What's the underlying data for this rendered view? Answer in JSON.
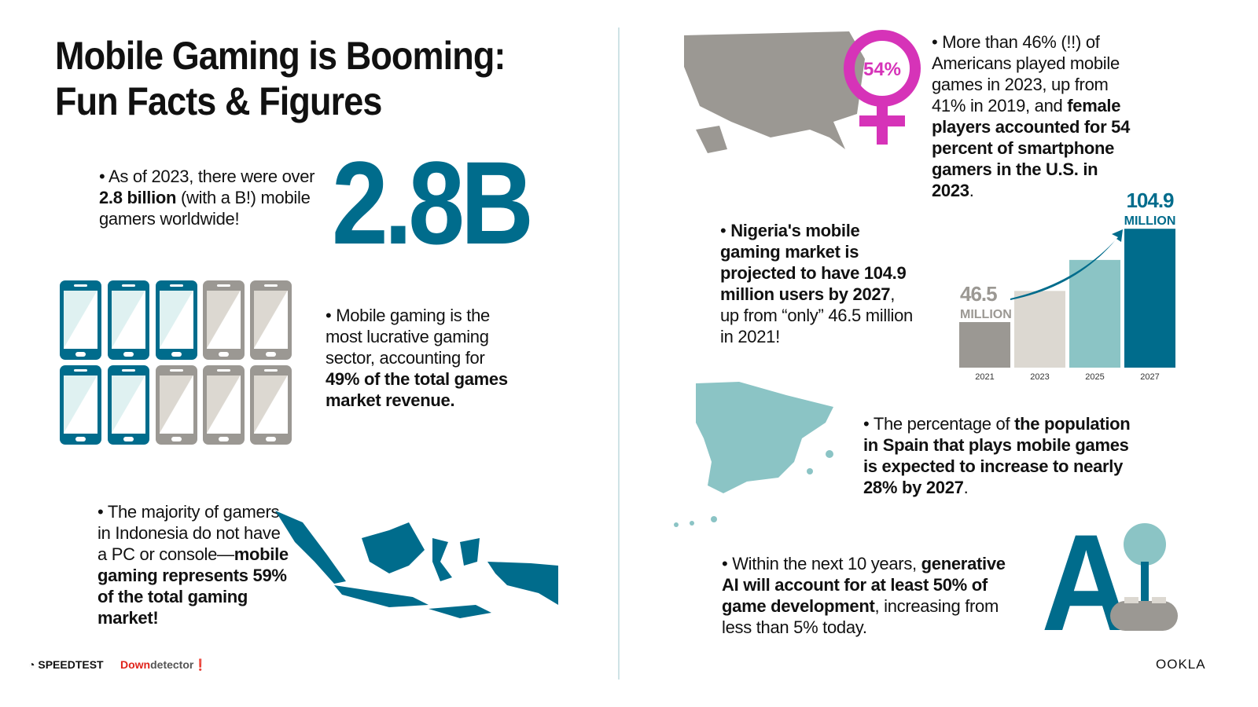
{
  "title": {
    "line1": "Mobile Gaming is Booming:",
    "line2": "Fun Facts & Figures"
  },
  "fact_gamers": {
    "bullet": "•",
    "pre": "As of 2023, there were over ",
    "bold": "2.8 billion",
    "post": " (with a B!) mobile gamers worldwide!",
    "big_number": "2.8B"
  },
  "fact_revenue": {
    "pre": "Mobile gaming is the most lucrative gaming sector, accounting for ",
    "bold": "49% of the total games market revenue.",
    "share_percent": 49
  },
  "fact_indonesia": {
    "pre": "The majority of gamers in Indonesia do not have a PC or console—",
    "bold": "mobile gaming represents 59% of the total gaming market!"
  },
  "fact_us": {
    "pre": "More than 46% (!!) of Americans played mobile games in 2023, up from 41% in 2019, and ",
    "bold": "female players accounted for 54 percent of smartphone gamers in the U.S. in 2023",
    "post": ".",
    "badge": "54%"
  },
  "fact_nigeria": {
    "bold1": "Nigeria's mobile gaming market is projected to have 104.9 million users by 2027",
    "post": ", up from “only” 46.5 million in 2021!"
  },
  "fact_spain": {
    "pre": "The percentage of ",
    "bold": "the population in Spain that plays mobile games is expected to increase to nearly 28% by 2027",
    "post": "."
  },
  "fact_ai": {
    "pre": "Within the next 10 years, ",
    "bold": "generative AI will account for at least 50% of game development",
    "post": ", increasing from less than 5% today.",
    "logo_text": "AI"
  },
  "chart_data": {
    "type": "bar",
    "categories": [
      "2021",
      "2023",
      "2025",
      "2027"
    ],
    "values": [
      46.5,
      66,
      85.4,
      104.9
    ],
    "unit": "MILLION",
    "data_labels": [
      {
        "value": "46.5",
        "unit": "MILLION"
      },
      null,
      null,
      {
        "value": "104.9",
        "unit": "MILLION"
      }
    ],
    "colors": [
      "#9b9893",
      "#dcd8d1",
      "#8bc4c5",
      "#006c8c"
    ],
    "ylim": [
      18,
      105
    ],
    "grid": false,
    "annotation": "arrow from 2021 to 2027"
  },
  "colors": {
    "teal": "#006c8c",
    "light_teal": "#8bc4c5",
    "gray": "#9b9893",
    "magenta": "#d633b8"
  },
  "footer": {
    "speedtest": "SPEEDTEST",
    "downdetector_a": "Down",
    "downdetector_b": "detector",
    "ookla": "OOKLA"
  }
}
